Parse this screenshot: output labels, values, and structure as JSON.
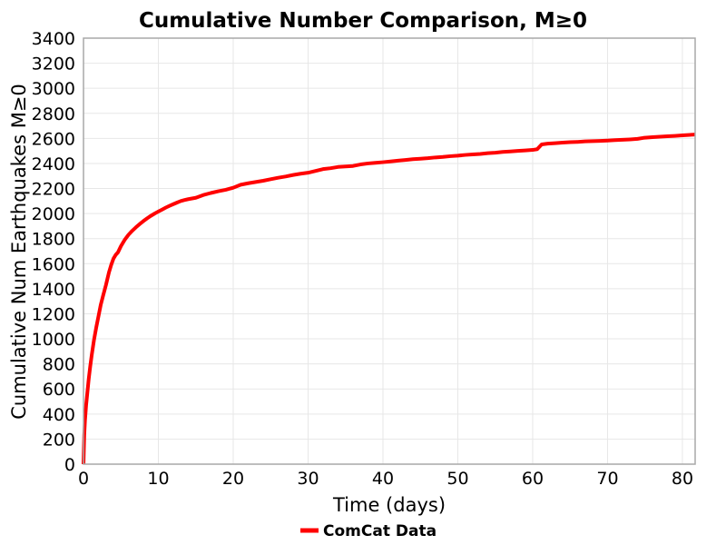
{
  "chart_data": {
    "type": "line",
    "title": "Cumulative Number Comparison, M≥0",
    "xlabel": "Time (days)",
    "ylabel": "Cumulative Num Earthquakes M≥0",
    "xlim": [
      0,
      81.7
    ],
    "ylim": [
      0,
      3400
    ],
    "xticks": [
      0,
      10,
      20,
      30,
      40,
      50,
      60,
      70,
      80
    ],
    "yticks": [
      0,
      200,
      400,
      600,
      800,
      1000,
      1200,
      1400,
      1600,
      1800,
      2000,
      2200,
      2400,
      2600,
      2800,
      3000,
      3200,
      3400
    ],
    "grid": true,
    "grid_color": "#e7e7e7",
    "frame_color": "#a8a8a8",
    "legend_position": "bottom-center",
    "series": [
      {
        "name": "ComCat Data",
        "color": "#ff0000",
        "line_width": 4,
        "points": [
          [
            0,
            0
          ],
          [
            0.05,
            120
          ],
          [
            0.1,
            230
          ],
          [
            0.2,
            350
          ],
          [
            0.35,
            470
          ],
          [
            0.5,
            560
          ],
          [
            0.7,
            680
          ],
          [
            0.9,
            780
          ],
          [
            1.1,
            870
          ],
          [
            1.4,
            990
          ],
          [
            1.7,
            1090
          ],
          [
            2.0,
            1180
          ],
          [
            2.3,
            1270
          ],
          [
            2.6,
            1340
          ],
          [
            3.0,
            1430
          ],
          [
            3.4,
            1530
          ],
          [
            3.7,
            1590
          ],
          [
            4.0,
            1640
          ],
          [
            4.3,
            1670
          ],
          [
            4.6,
            1690
          ],
          [
            5.0,
            1740
          ],
          [
            5.5,
            1790
          ],
          [
            6.0,
            1830
          ],
          [
            6.5,
            1862
          ],
          [
            7.0,
            1890
          ],
          [
            7.5,
            1916
          ],
          [
            8.0,
            1940
          ],
          [
            8.5,
            1962
          ],
          [
            9.0,
            1982
          ],
          [
            9.5,
            2000
          ],
          [
            10,
            2016
          ],
          [
            10.5,
            2032
          ],
          [
            11,
            2048
          ],
          [
            11.5,
            2062
          ],
          [
            12,
            2075
          ],
          [
            12.5,
            2088
          ],
          [
            13,
            2100
          ],
          [
            13.5,
            2108
          ],
          [
            14,
            2115
          ],
          [
            15,
            2126
          ],
          [
            16,
            2148
          ],
          [
            17,
            2164
          ],
          [
            18,
            2178
          ],
          [
            19,
            2190
          ],
          [
            20,
            2206
          ],
          [
            21,
            2230
          ],
          [
            22,
            2242
          ],
          [
            23,
            2252
          ],
          [
            24,
            2262
          ],
          [
            25,
            2274
          ],
          [
            26,
            2286
          ],
          [
            27,
            2296
          ],
          [
            28,
            2308
          ],
          [
            29,
            2318
          ],
          [
            30,
            2326
          ],
          [
            31,
            2340
          ],
          [
            32,
            2355
          ],
          [
            33,
            2362
          ],
          [
            34,
            2372
          ],
          [
            35,
            2376
          ],
          [
            36,
            2380
          ],
          [
            37,
            2392
          ],
          [
            38,
            2400
          ],
          [
            39,
            2405
          ],
          [
            40,
            2410
          ],
          [
            41,
            2416
          ],
          [
            42,
            2422
          ],
          [
            43,
            2428
          ],
          [
            44,
            2434
          ],
          [
            45,
            2438
          ],
          [
            46,
            2442
          ],
          [
            47,
            2448
          ],
          [
            48,
            2452
          ],
          [
            49,
            2458
          ],
          [
            50,
            2462
          ],
          [
            51,
            2468
          ],
          [
            52,
            2472
          ],
          [
            53,
            2476
          ],
          [
            54,
            2482
          ],
          [
            55,
            2486
          ],
          [
            56,
            2492
          ],
          [
            57,
            2496
          ],
          [
            58,
            2500
          ],
          [
            59,
            2504
          ],
          [
            60,
            2508
          ],
          [
            60.6,
            2514
          ],
          [
            61.2,
            2552
          ],
          [
            62,
            2558
          ],
          [
            63,
            2562
          ],
          [
            64,
            2566
          ],
          [
            65,
            2570
          ],
          [
            66,
            2572
          ],
          [
            67,
            2576
          ],
          [
            68,
            2578
          ],
          [
            69,
            2580
          ],
          [
            70,
            2583
          ],
          [
            71,
            2586
          ],
          [
            72,
            2589
          ],
          [
            73,
            2592
          ],
          [
            74,
            2596
          ],
          [
            74.8,
            2604
          ],
          [
            76,
            2610
          ],
          [
            77,
            2613
          ],
          [
            78,
            2617
          ],
          [
            79,
            2620
          ],
          [
            80,
            2624
          ],
          [
            81,
            2628
          ],
          [
            81.7,
            2631
          ]
        ]
      }
    ]
  }
}
